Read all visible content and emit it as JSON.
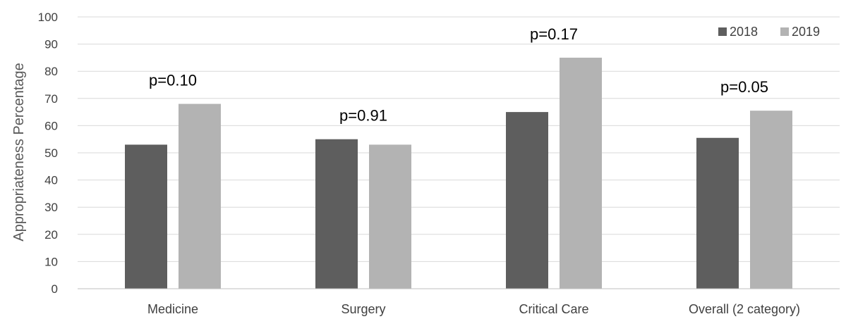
{
  "chart_data": {
    "type": "bar",
    "categories": [
      "Medicine",
      "Surgery",
      "Critical Care",
      "Overall (2 category)"
    ],
    "series": [
      {
        "name": "2018",
        "values": [
          53,
          55,
          65,
          55.5
        ],
        "color": "#5e5e5e"
      },
      {
        "name": "2019",
        "values": [
          68,
          53,
          85,
          65.5
        ],
        "color": "#b3b3b3"
      }
    ],
    "annotations": [
      "p=0.10",
      "p=0.91",
      "p=0.17",
      "p=0.05"
    ],
    "ylabel": "Appropriateness Percentage",
    "ylim": [
      0,
      100
    ],
    "yticks": [
      0,
      10,
      20,
      30,
      40,
      50,
      60,
      70,
      80,
      90,
      100
    ],
    "grid": true,
    "legend_position": "top-right"
  }
}
